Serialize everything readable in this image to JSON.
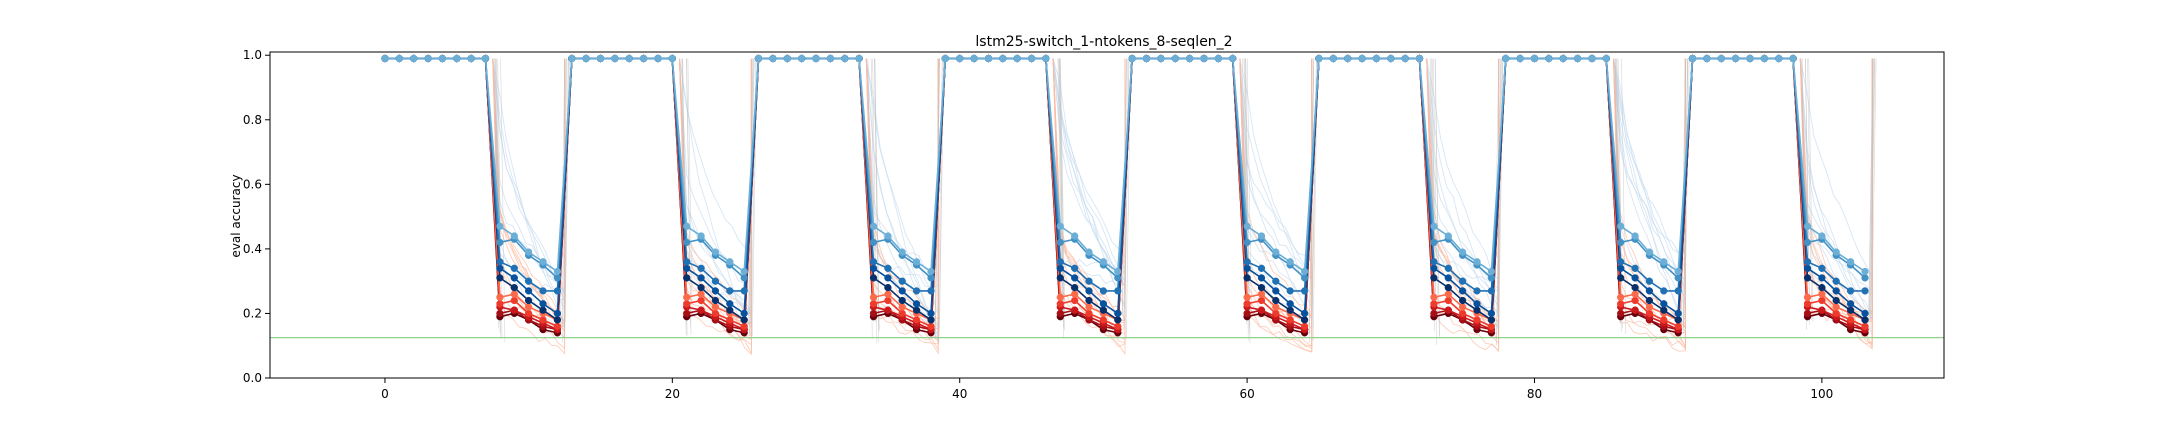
{
  "chart_data": {
    "type": "line",
    "title": "lstm25-switch_1-ntokens_8-seqlen_2",
    "xlabel": "",
    "ylabel": "eval accuracy",
    "xlim": [
      -8,
      108.5
    ],
    "ylim": [
      0.0,
      1.01
    ],
    "x_ticks": [
      0,
      20,
      40,
      60,
      80,
      100
    ],
    "y_ticks": [
      0.0,
      0.2,
      0.4,
      0.6,
      0.8,
      1.0
    ],
    "x_tick_labels": [
      "0",
      "20",
      "40",
      "60",
      "80",
      "100"
    ],
    "y_tick_labels": [
      "0.0",
      "0.2",
      "0.4",
      "0.6",
      "0.8",
      "1.0"
    ],
    "grid": false,
    "reference_line": {
      "y": 0.125,
      "color": "#8fd18f"
    },
    "cycle": {
      "period": 13,
      "high_start": 0,
      "high_end": 7,
      "drop_x": 7.5,
      "low_start": 8,
      "low_end": 12,
      "rise_x": 12.5,
      "cycles": 8
    },
    "colors": {
      "blue": [
        "#08306b",
        "#08519c",
        "#2171b5",
        "#4292c6",
        "#6baed6"
      ],
      "red": [
        "#67000d",
        "#a50f15",
        "#cb181d",
        "#ef3b2c",
        "#fb6a4a"
      ],
      "faint_blue": "#c6dbef",
      "faint_red": "#fcbba1",
      "faint_grey": "#bdbdbd"
    },
    "series": [
      {
        "color": "#6baed6",
        "high": 0.99,
        "low_values": [
          0.47,
          0.44,
          0.39,
          0.36,
          0.33
        ]
      },
      {
        "color": "#4292c6",
        "high": 0.99,
        "low_values": [
          0.42,
          0.43,
          0.38,
          0.35,
          0.31
        ]
      },
      {
        "color": "#2171b5",
        "high": 0.99,
        "low_values": [
          0.36,
          0.34,
          0.3,
          0.27,
          0.27
        ]
      },
      {
        "color": "#08519c",
        "high": 0.99,
        "low_values": [
          0.34,
          0.31,
          0.27,
          0.23,
          0.2
        ]
      },
      {
        "color": "#08306b",
        "high": 0.99,
        "low_values": [
          0.31,
          0.28,
          0.24,
          0.21,
          0.18
        ]
      },
      {
        "color": "#fb6a4a",
        "high": 0.99,
        "low_values": [
          0.25,
          0.26,
          0.22,
          0.2,
          0.18
        ]
      },
      {
        "color": "#ef3b2c",
        "high": 0.99,
        "low_values": [
          0.23,
          0.24,
          0.2,
          0.18,
          0.16
        ]
      },
      {
        "color": "#cb181d",
        "high": 0.99,
        "low_values": [
          0.22,
          0.21,
          0.19,
          0.17,
          0.15
        ]
      },
      {
        "color": "#a50f15",
        "high": 0.99,
        "low_values": [
          0.2,
          0.21,
          0.18,
          0.16,
          0.15
        ]
      },
      {
        "color": "#67000d",
        "high": 0.99,
        "low_values": [
          0.19,
          0.2,
          0.18,
          0.15,
          0.14
        ]
      }
    ]
  }
}
